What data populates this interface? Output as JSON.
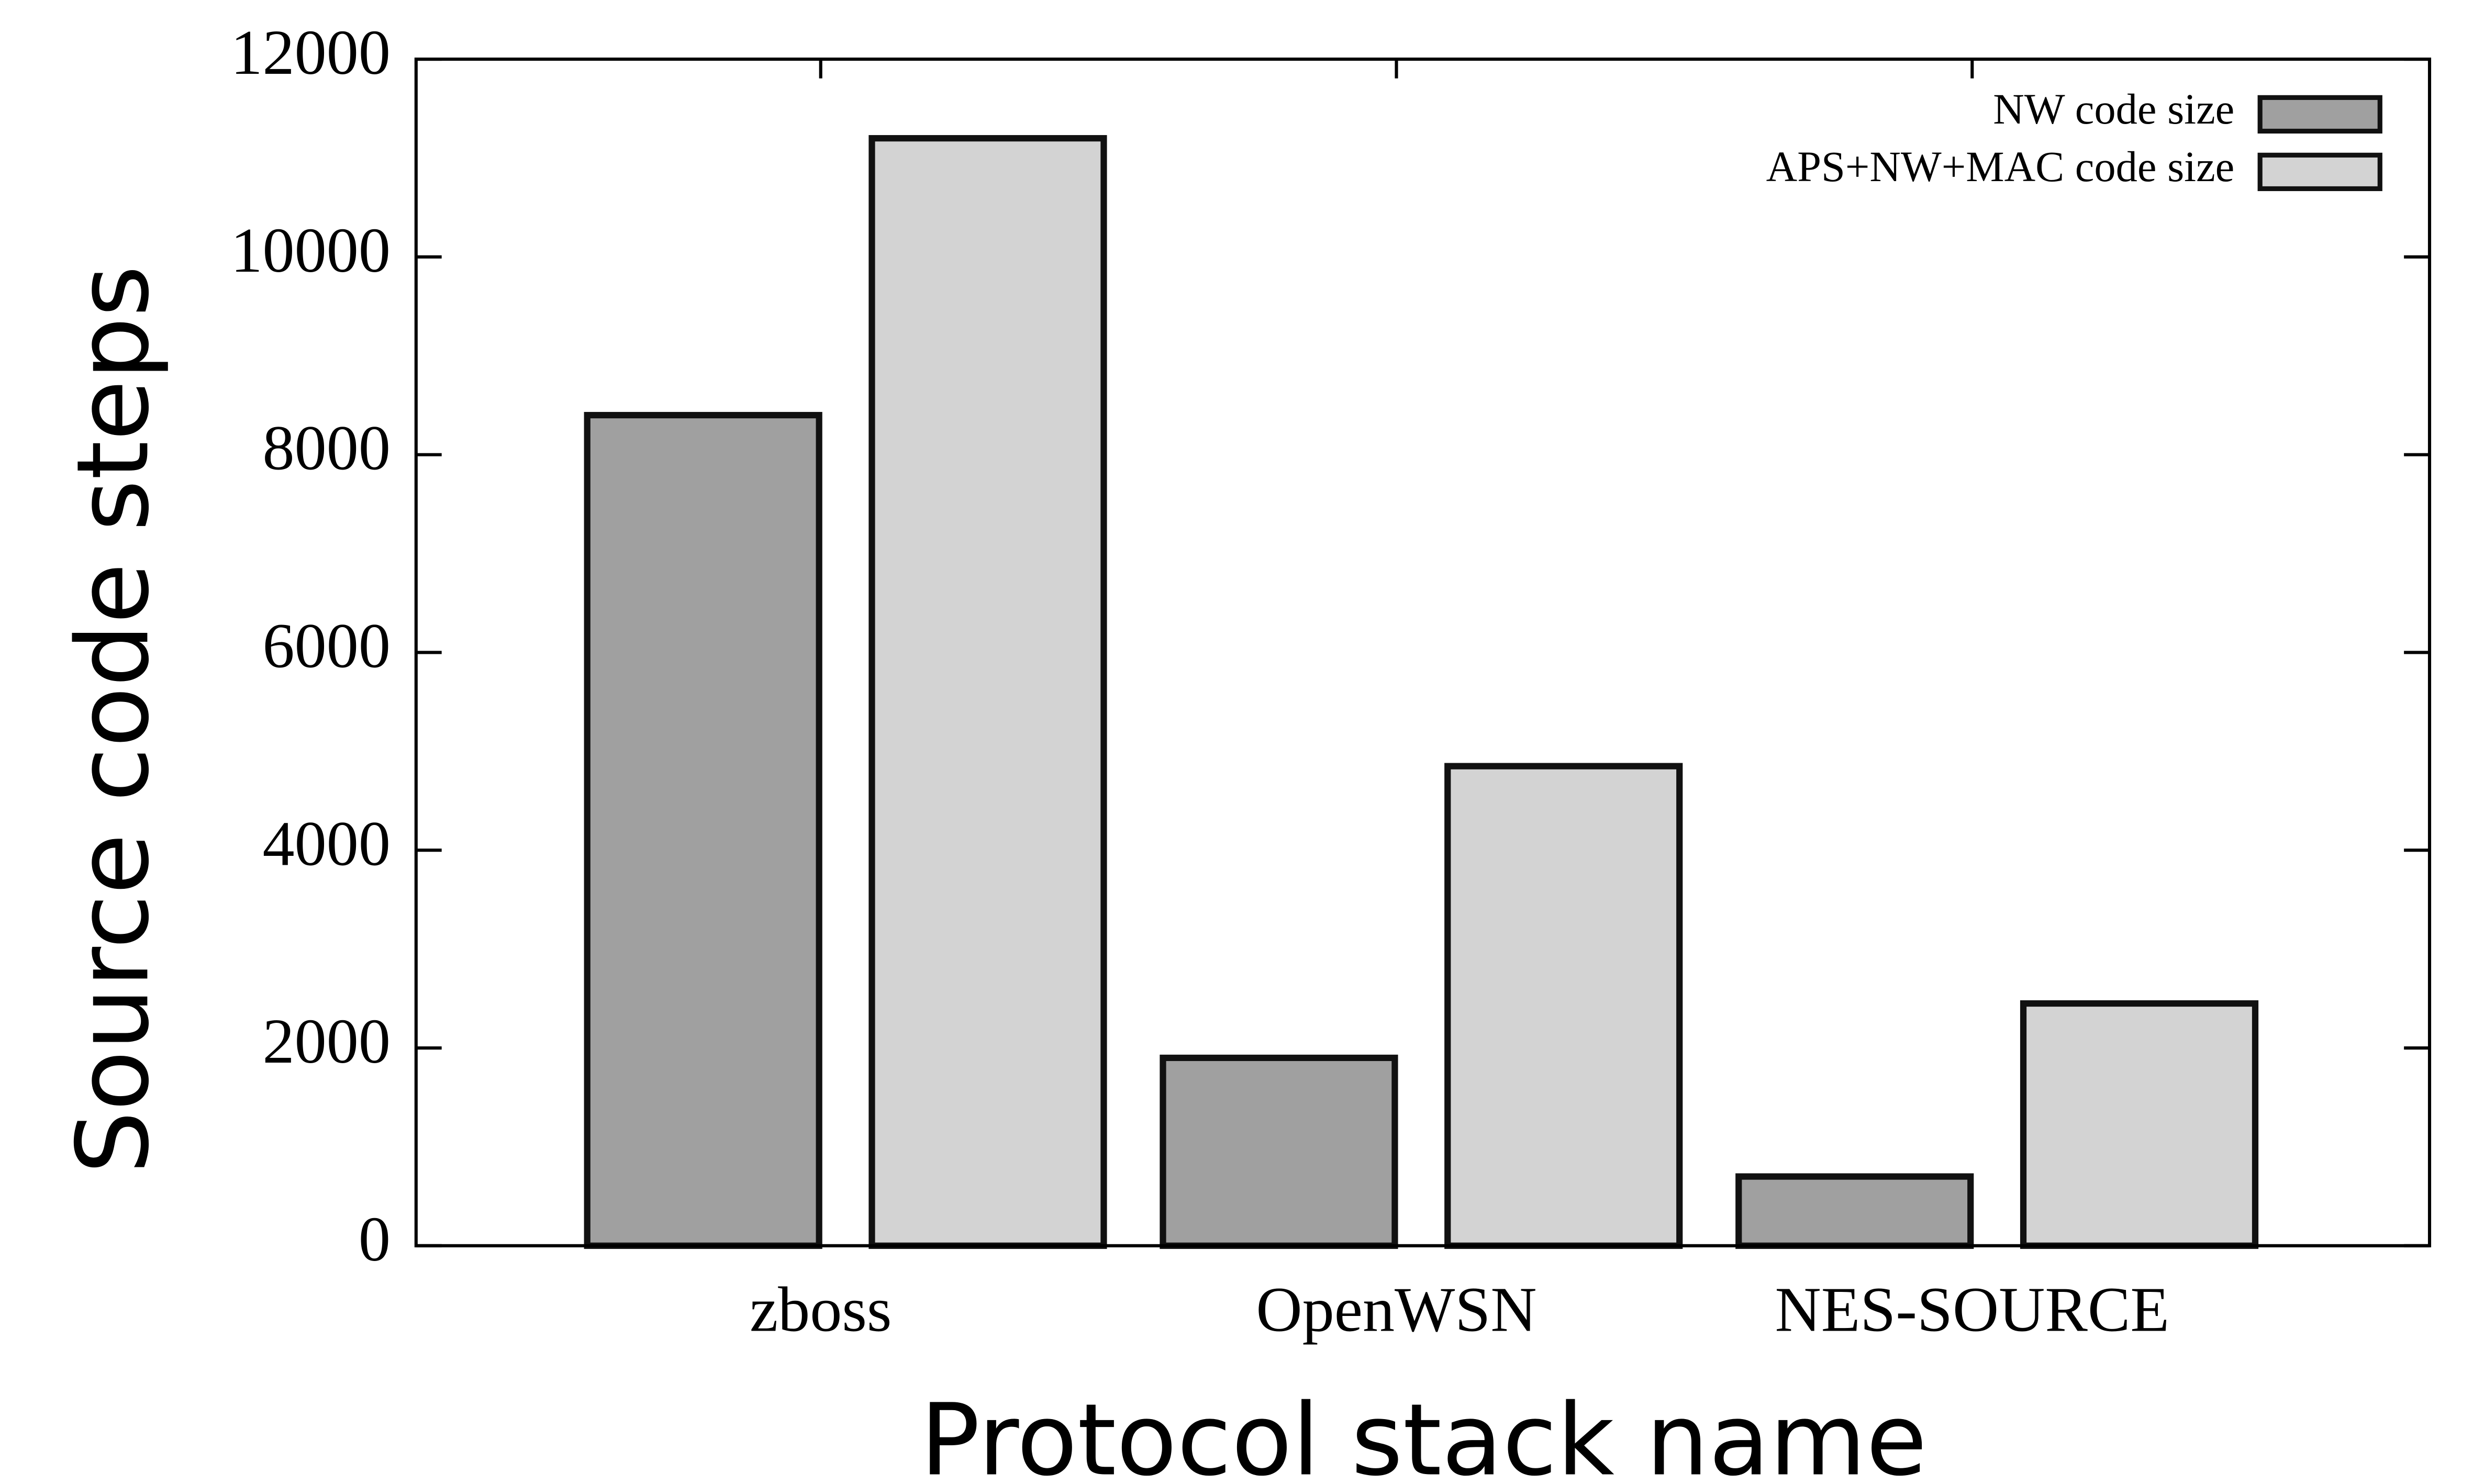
{
  "chart_data": {
    "type": "bar",
    "xlabel": "Protocol stack name",
    "ylabel": "Source code steps",
    "categories": [
      "zboss",
      "OpenWSN",
      "NES-SOURCE"
    ],
    "series": [
      {
        "name": "NW code size",
        "color": "#a0a0a0",
        "values": [
          8400,
          1900,
          700
        ]
      },
      {
        "name": "APS+NW+MAC code size",
        "color": "#d3d3d3",
        "values": [
          11200,
          4850,
          2450
        ]
      }
    ],
    "ylim": [
      0,
      12000
    ],
    "yticks": [
      0,
      2000,
      4000,
      6000,
      8000,
      10000,
      12000
    ],
    "legend": "top-right"
  }
}
